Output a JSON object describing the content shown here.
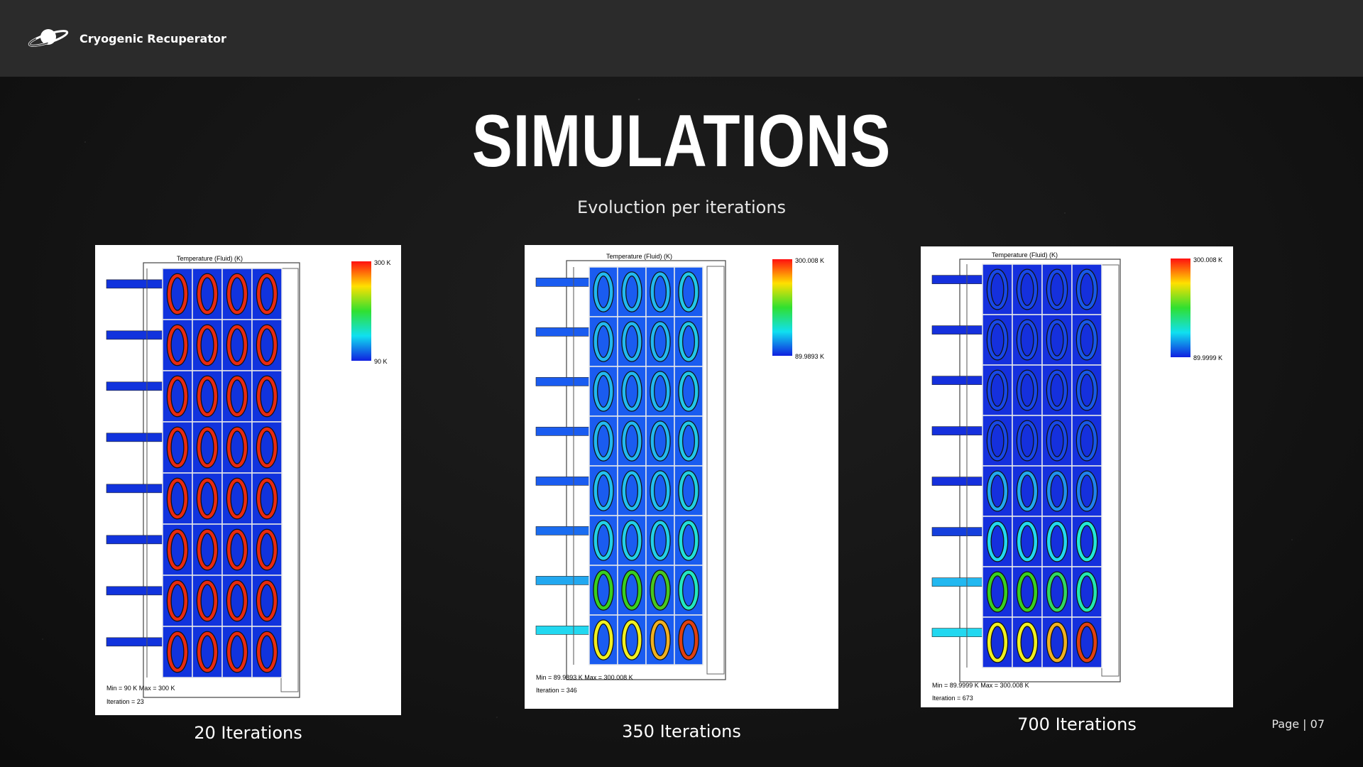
{
  "header": {
    "brand_name": "Cryogenic Recuperator",
    "logo_icon": "planet-ring-icon"
  },
  "slide": {
    "title": "SIMULATIONS",
    "subtitle": "Evoluction per iterations",
    "page_label": "Page | 07"
  },
  "panels": [
    {
      "plot_title": "Temperature (Fluid) (K)",
      "scale_max": "300 K",
      "scale_min": "90 K",
      "min_max_label": "Min = 90 K   Max = 300 K",
      "iteration_label": "Iteration = 23",
      "caption": "20 Iterations",
      "cell_color": "#1133dd",
      "ring_colors": [
        [
          "#e82a10",
          "#e82a10",
          "#e82a10",
          "#e82a10"
        ],
        [
          "#e82a10",
          "#e82a10",
          "#e82a10",
          "#e82a10"
        ],
        [
          "#e82a10",
          "#e82a10",
          "#e82a10",
          "#e82a10"
        ],
        [
          "#e82a10",
          "#e82a10",
          "#e82a10",
          "#e82a10"
        ],
        [
          "#e82a10",
          "#e82a10",
          "#e82a10",
          "#e82a10"
        ],
        [
          "#e82a10",
          "#e82a10",
          "#e82a10",
          "#e82a10"
        ],
        [
          "#e82a10",
          "#e82a10",
          "#e82a10",
          "#e82a10"
        ],
        [
          "#e82a10",
          "#e82a10",
          "#e82a10",
          "#e82a10"
        ]
      ],
      "inlet_colors": [
        "#1133dd",
        "#1133dd",
        "#1133dd",
        "#1133dd",
        "#1133dd",
        "#1133dd",
        "#1133dd",
        "#1133dd"
      ]
    },
    {
      "plot_title": "Temperature (Fluid) (K)",
      "scale_max": "300.008 K",
      "scale_min": "89.9893 K",
      "min_max_label": "Min = 89.9893 K   Max = 300.008 K",
      "iteration_label": "Iteration = 346",
      "caption": "350 Iterations",
      "cell_color": "#1a5cf0",
      "ring_colors": [
        [
          "#22b8f0",
          "#22b8f0",
          "#22b8f0",
          "#22c8e8"
        ],
        [
          "#22b8f0",
          "#22b8f0",
          "#22b8f0",
          "#22c8e8"
        ],
        [
          "#22b8f0",
          "#22b8f0",
          "#22b8f0",
          "#22c8e8"
        ],
        [
          "#22b8f0",
          "#22b8f0",
          "#22b8f0",
          "#22c8e8"
        ],
        [
          "#22c0f0",
          "#22c0f0",
          "#22c0f0",
          "#22d0e0"
        ],
        [
          "#22d0e8",
          "#22d0e8",
          "#22d0e8",
          "#22e0d8"
        ],
        [
          "#38d020",
          "#38d020",
          "#48c820",
          "#22e8c0"
        ],
        [
          "#f0f020",
          "#f0f020",
          "#f0b020",
          "#e04010"
        ]
      ],
      "inlet_colors": [
        "#1a5cf0",
        "#1a5cf0",
        "#1a5cf0",
        "#1a5cf0",
        "#1a5cf0",
        "#1a6cf0",
        "#22a8f0",
        "#22d8f0"
      ]
    },
    {
      "plot_title": "Temperature (Fluid) (K)",
      "scale_max": "300.008 K",
      "scale_min": "89.9999 K",
      "min_max_label": "Min = 89.9999 K   Max = 300.008 K",
      "iteration_label": "Iteration = 673",
      "caption": "700 Iterations",
      "cell_color": "#1530dd",
      "ring_colors": [
        [
          "#1848e8",
          "#1848e8",
          "#1848e8",
          "#1858e8"
        ],
        [
          "#1848e8",
          "#1848e8",
          "#1848e8",
          "#1858e8"
        ],
        [
          "#1848e8",
          "#1848e8",
          "#1848e8",
          "#1858e8"
        ],
        [
          "#1848e8",
          "#1848e8",
          "#1848e8",
          "#1858e8"
        ],
        [
          "#22a8f0",
          "#22a8f0",
          "#2090f0",
          "#2080f0"
        ],
        [
          "#22d8f0",
          "#22d8f0",
          "#22d8f0",
          "#22e8d8"
        ],
        [
          "#38d020",
          "#38d020",
          "#30d860",
          "#22e8b0"
        ],
        [
          "#f0f020",
          "#f0f020",
          "#f0b020",
          "#e04010"
        ]
      ],
      "inlet_colors": [
        "#1530dd",
        "#1530dd",
        "#1530dd",
        "#1530dd",
        "#1530dd",
        "#1540dd",
        "#22b8f0",
        "#22d8f0"
      ]
    }
  ]
}
